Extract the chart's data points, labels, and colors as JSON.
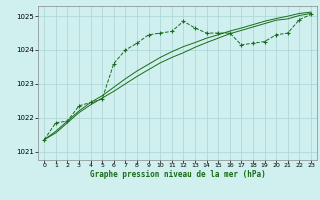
{
  "title": "Graphe pression niveau de la mer (hPa)",
  "background_color": "#cff0ef",
  "grid_color": "#b0d8d8",
  "line_color": "#1a6b1a",
  "xlim": [
    -0.5,
    23.5
  ],
  "ylim": [
    1020.75,
    1025.3
  ],
  "yticks": [
    1021,
    1022,
    1023,
    1024,
    1025
  ],
  "xticks": [
    0,
    1,
    2,
    3,
    4,
    5,
    6,
    7,
    8,
    9,
    10,
    11,
    12,
    13,
    14,
    15,
    16,
    17,
    18,
    19,
    20,
    21,
    22,
    23
  ],
  "series1_x": [
    0,
    1,
    2,
    3,
    4,
    5,
    6,
    7,
    8,
    9,
    10,
    11,
    12,
    13,
    14,
    15,
    16,
    17,
    18,
    19,
    20,
    21,
    22,
    23
  ],
  "series1_y": [
    1021.35,
    1021.85,
    1021.9,
    1022.35,
    1022.45,
    1022.55,
    1023.6,
    1024.0,
    1024.2,
    1024.45,
    1024.5,
    1024.55,
    1024.85,
    1024.65,
    1024.5,
    1024.5,
    1024.5,
    1024.15,
    1024.2,
    1024.25,
    1024.45,
    1024.5,
    1024.9,
    1025.05
  ],
  "series2_x": [
    0,
    1,
    2,
    3,
    4,
    5,
    6,
    7,
    8,
    9,
    10,
    11,
    12,
    13,
    14,
    15,
    16,
    17,
    18,
    19,
    20,
    21,
    22,
    23
  ],
  "series2_y": [
    1021.35,
    1021.55,
    1021.85,
    1022.15,
    1022.38,
    1022.58,
    1022.78,
    1023.0,
    1023.22,
    1023.42,
    1023.62,
    1023.78,
    1023.92,
    1024.08,
    1024.22,
    1024.35,
    1024.48,
    1024.58,
    1024.68,
    1024.78,
    1024.88,
    1024.92,
    1025.02,
    1025.08
  ],
  "series3_x": [
    0,
    1,
    2,
    3,
    4,
    5,
    6,
    7,
    8,
    9,
    10,
    11,
    12,
    13,
    14,
    15,
    16,
    17,
    18,
    19,
    20,
    21,
    22,
    23
  ],
  "series3_y": [
    1021.35,
    1021.6,
    1021.9,
    1022.2,
    1022.45,
    1022.65,
    1022.9,
    1023.15,
    1023.38,
    1023.58,
    1023.78,
    1023.95,
    1024.1,
    1024.22,
    1024.35,
    1024.45,
    1024.56,
    1024.65,
    1024.75,
    1024.85,
    1024.93,
    1025.0,
    1025.08,
    1025.12
  ]
}
